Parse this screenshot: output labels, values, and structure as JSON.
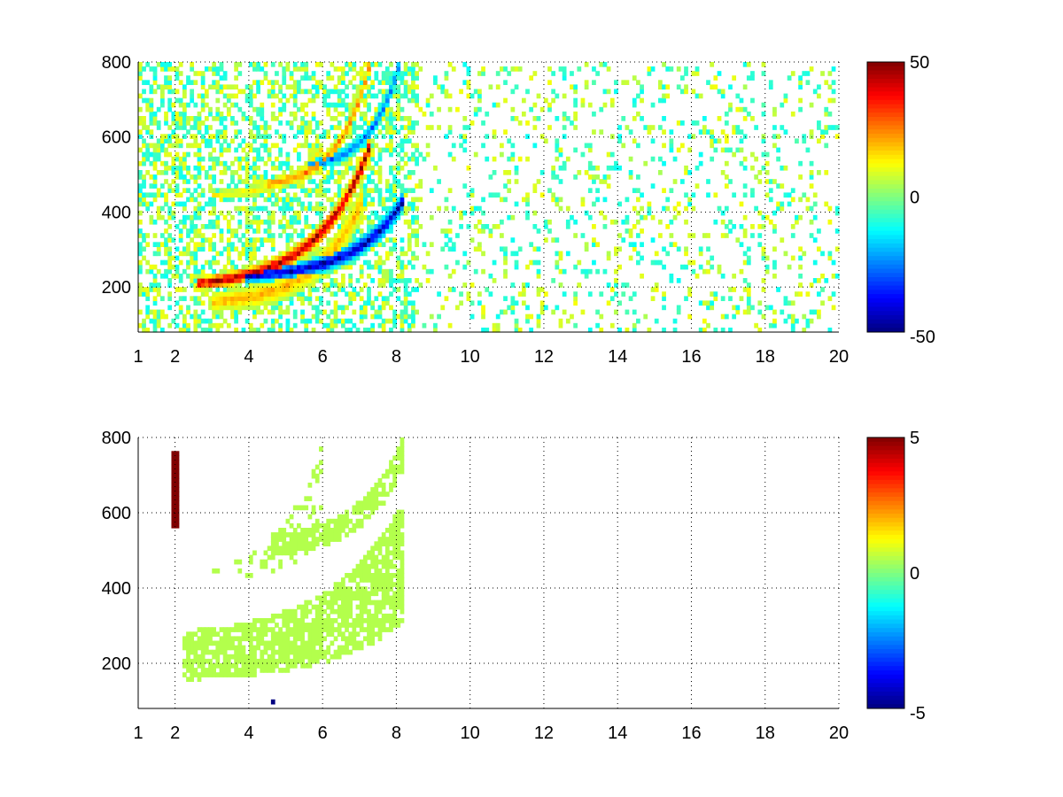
{
  "chart_data": [
    {
      "type": "heatmap",
      "title": "",
      "xlabel": "",
      "ylabel": "",
      "xlim": [
        1,
        20
      ],
      "ylim": [
        80,
        800
      ],
      "x_ticks": [
        "1",
        "2",
        "4",
        "6",
        "8",
        "10",
        "12",
        "14",
        "16",
        "18",
        "20"
      ],
      "y_ticks": [
        "200",
        "400",
        "600",
        "800"
      ],
      "grid": true,
      "colormap": "jet",
      "colorbar": {
        "min": -50,
        "max": 50,
        "ticks": [
          "50",
          "0",
          "-50"
        ]
      },
      "noise_fraction": 0.16,
      "noise_band": [
        -12,
        12
      ],
      "ridges": [
        {
          "type": "positive-main",
          "x_start": 2.6,
          "x_end": 7.2,
          "y_start": 205,
          "y_end": 560,
          "value": 50,
          "width": 22
        },
        {
          "type": "negative-main",
          "x_start": 3.9,
          "x_end": 8.1,
          "y_start": 225,
          "y_end": 420,
          "value": -50,
          "width": 22
        },
        {
          "type": "positive-halo",
          "x_start": 3.0,
          "x_end": 7.0,
          "y_start": 155,
          "y_end": 420,
          "value": 22,
          "width": 35
        },
        {
          "type": "positive-upper",
          "x_start": 4.5,
          "x_end": 7.2,
          "y_start": 470,
          "y_end": 780,
          "value": 28,
          "width": 18
        },
        {
          "type": "negative-upper",
          "x_start": 5.5,
          "x_end": 8.0,
          "y_start": 520,
          "y_end": 780,
          "value": -30,
          "width": 18
        },
        {
          "type": "positive-faint",
          "x_start": 3.0,
          "x_end": 5.9,
          "y_start": 440,
          "y_end": 560,
          "value": 15,
          "width": 16
        }
      ]
    },
    {
      "type": "heatmap",
      "title": "",
      "xlabel": "",
      "ylabel": "",
      "xlim": [
        1,
        20
      ],
      "ylim": [
        80,
        800
      ],
      "x_ticks": [
        "1",
        "2",
        "4",
        "6",
        "8",
        "10",
        "12",
        "14",
        "16",
        "18",
        "20"
      ],
      "y_ticks": [
        "200",
        "400",
        "600",
        "800"
      ],
      "grid": true,
      "colormap": "jet",
      "colorbar": {
        "min": -5,
        "max": 5,
        "ticks": [
          "5",
          "0",
          "-5"
        ]
      },
      "dominant_value": 0.5,
      "spikes": [
        {
          "x": 1.95,
          "y_from": 550,
          "y_to": 760,
          "value": 5
        },
        {
          "x": 4.6,
          "y_from": 85,
          "y_to": 100,
          "value": -5
        }
      ],
      "regions": [
        {
          "type": "lower-band",
          "x_start": 2.2,
          "x_end": 8.1,
          "y_low_start": 150,
          "y_high_start": 280,
          "y_low_end": 300,
          "y_high_end": 620
        },
        {
          "type": "upper-arc",
          "x_start": 4.6,
          "x_end": 8.1,
          "y_low_start": 480,
          "y_high_start": 540,
          "y_low_end": 700,
          "y_high_end": 790
        },
        {
          "type": "faint-arc",
          "x_start": 3.0,
          "x_end": 5.9,
          "y_low_start": 420,
          "y_high_start": 450,
          "y_low_end": 500,
          "y_high_end": 800
        }
      ]
    }
  ]
}
